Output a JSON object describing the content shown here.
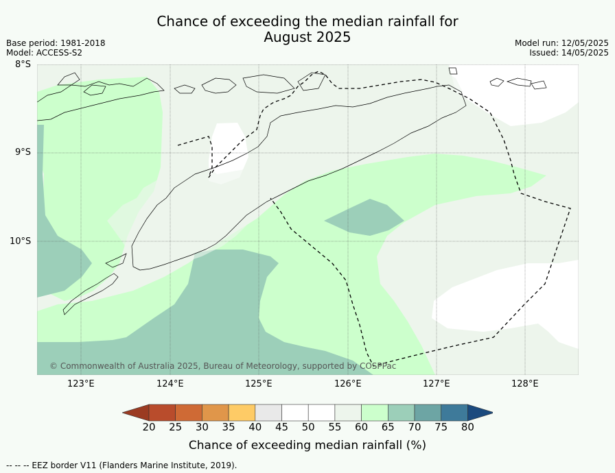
{
  "title": {
    "line1": "Chance of exceeding the median rainfall for",
    "line2": "August 2025"
  },
  "meta_left": {
    "base_period": "Base period: 1981-2018",
    "model": "Model: ACCESS-S2"
  },
  "meta_right": {
    "model_run": "Model run: 12/05/2025",
    "issued": "Issued: 14/05/2025"
  },
  "map": {
    "lat_labels": [
      "8°S",
      "9°S",
      "10°S"
    ],
    "lon_labels": [
      "123°E",
      "124°E",
      "125°E",
      "126°E",
      "127°E",
      "128°E"
    ],
    "copyright": "© Commonwealth of Australia 2025, Bureau of Meteorology, supported by COSPPac",
    "colors": {
      "c55_60": "#edf5ec",
      "c60_65": "#ccffcc",
      "c65_70": "#9ccfb9",
      "c50_55": "#ffffff",
      "coast": "#000000"
    }
  },
  "colorbar": {
    "labels": [
      "20",
      "25",
      "30",
      "35",
      "40",
      "45",
      "50",
      "55",
      "60",
      "65",
      "70",
      "75",
      "80"
    ],
    "colors": [
      "#9b3b22",
      "#b94c2c",
      "#cf6a35",
      "#e0964a",
      "#fecb66",
      "#e9e9e9",
      "#ffffff",
      "#ffffff",
      "#edf5ec",
      "#ccffcc",
      "#9ccfb9",
      "#6da5a4",
      "#3e7a9a",
      "#1b4a7e"
    ],
    "title": "Chance of exceeding median rainfall (%)"
  },
  "footer": "--  --  -- EEZ border V11 (Flanders Marine Institute, 2019)."
}
